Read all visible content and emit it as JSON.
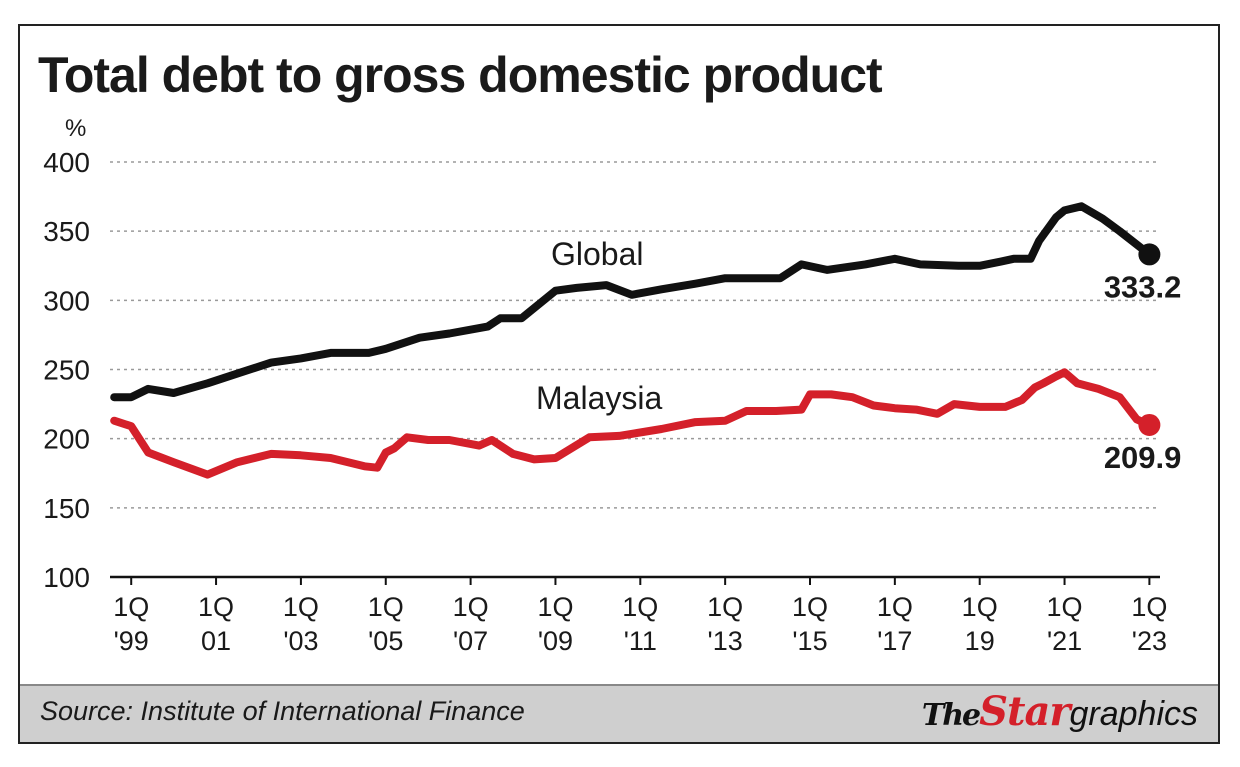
{
  "chart_data": {
    "type": "line",
    "title": "Total debt to gross domestic product",
    "ylabel": "%",
    "xlabel": "",
    "ylim": [
      100,
      400
    ],
    "yticks": [
      400,
      350,
      300,
      250,
      200,
      150,
      100
    ],
    "grid": true,
    "xlim": [
      1998.5,
      2023.25
    ],
    "xticks": [
      {
        "x": 1999,
        "l1": "1Q",
        "l2": "'99"
      },
      {
        "x": 2001,
        "l1": "1Q",
        "l2": "01"
      },
      {
        "x": 2003,
        "l1": "1Q",
        "l2": "'03"
      },
      {
        "x": 2005,
        "l1": "1Q",
        "l2": "'05"
      },
      {
        "x": 2007,
        "l1": "1Q",
        "l2": "'07"
      },
      {
        "x": 2009,
        "l1": "1Q",
        "l2": "'09"
      },
      {
        "x": 2011,
        "l1": "1Q",
        "l2": "'11"
      },
      {
        "x": 2013,
        "l1": "1Q",
        "l2": "'13"
      },
      {
        "x": 2015,
        "l1": "1Q",
        "l2": "'15"
      },
      {
        "x": 2017,
        "l1": "1Q",
        "l2": "'17"
      },
      {
        "x": 2019,
        "l1": "1Q",
        "l2": "19"
      },
      {
        "x": 2021,
        "l1": "1Q",
        "l2": "'21"
      },
      {
        "x": 2023,
        "l1": "1Q",
        "l2": "'23"
      }
    ],
    "series": [
      {
        "name": "Global",
        "color": "#111111",
        "end_label": "333.2",
        "x": [
          1998.6,
          1999.0,
          1999.4,
          2000.0,
          2000.8,
          2001.5,
          2002.3,
          2003.0,
          2003.7,
          2004.6,
          2005.0,
          2005.8,
          2006.5,
          2007.4,
          2007.7,
          2008.2,
          2009.0,
          2009.5,
          2010.2,
          2010.8,
          2011.5,
          2012.3,
          2013.0,
          2013.5,
          2014.3,
          2014.8,
          2015.4,
          2016.3,
          2017.0,
          2017.6,
          2018.5,
          2019.0,
          2019.5,
          2019.8,
          2020.2,
          2020.4,
          2020.8,
          2021.0,
          2021.4,
          2021.9,
          2022.3,
          2023.0
        ],
        "values": [
          230,
          230,
          236,
          233,
          240,
          247,
          255,
          258,
          262,
          262,
          265,
          273,
          276,
          281,
          287,
          287,
          307,
          309,
          311,
          304,
          308,
          312,
          316,
          316,
          316,
          326,
          322,
          326,
          330,
          326,
          325,
          325,
          328,
          330,
          330,
          343,
          360,
          365,
          368,
          359,
          350,
          333.2
        ]
      },
      {
        "name": "Malaysia",
        "color": "#d4202a",
        "end_label": "209.9",
        "x": [
          1998.6,
          1999.0,
          1999.4,
          2000.0,
          2000.8,
          2001.5,
          2002.3,
          2003.0,
          2003.7,
          2004.5,
          2004.8,
          2005.0,
          2005.2,
          2005.5,
          2006.0,
          2006.5,
          2007.2,
          2007.5,
          2008.0,
          2008.5,
          2009.0,
          2009.8,
          2010.5,
          2011.5,
          2012.3,
          2013.0,
          2013.5,
          2014.2,
          2014.8,
          2015.0,
          2015.5,
          2016.0,
          2016.5,
          2017.0,
          2017.5,
          2018.0,
          2018.4,
          2019.0,
          2019.6,
          2020.0,
          2020.3,
          2020.5,
          2020.8,
          2021.0,
          2021.3,
          2021.8,
          2022.3,
          2022.7,
          2023.0
        ],
        "values": [
          213,
          209,
          190,
          183,
          174,
          183,
          189,
          188,
          186,
          180,
          179,
          190,
          193,
          201,
          199,
          199,
          195,
          199,
          189,
          185,
          186,
          201,
          202,
          207,
          212,
          213,
          220,
          220,
          221,
          232,
          232,
          230,
          224,
          222,
          221,
          218,
          225,
          223,
          223,
          228,
          237,
          240,
          245,
          248,
          240,
          236,
          230,
          214,
          209.9
        ]
      }
    ]
  },
  "labels": {
    "global": "Global",
    "malaysia": "Malaysia"
  },
  "footer": {
    "source": "Source: Institute of International Finance",
    "logo_the": "The",
    "logo_star": "Star",
    "logo_graphics": "graphics"
  }
}
